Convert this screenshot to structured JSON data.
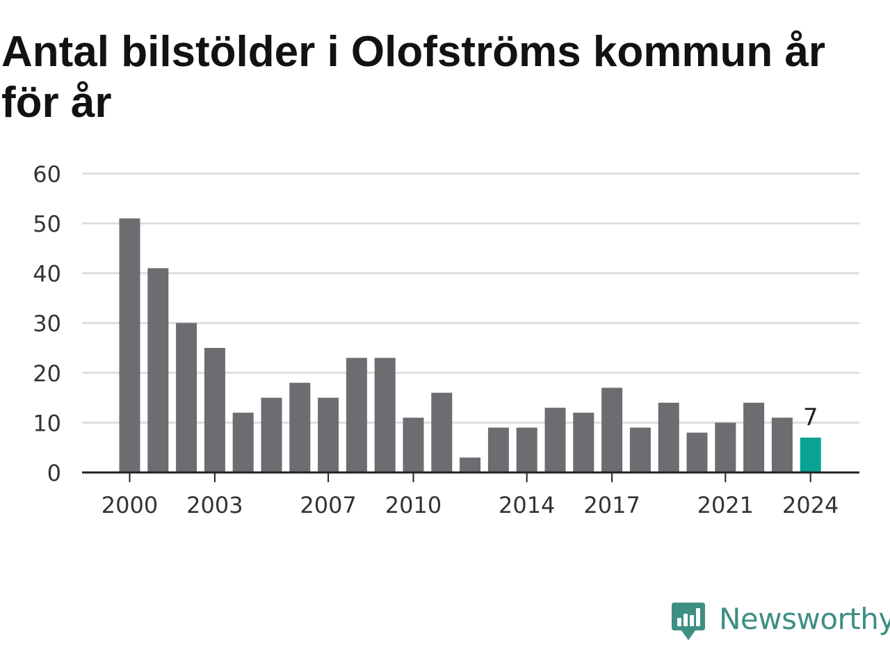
{
  "title": "Antal bilstölder i Olofströms kommun år för år",
  "brand": {
    "name": "Newsworthy",
    "logo_icon": "newsworthy-chart-bubble-icon",
    "color": "#3e8e83"
  },
  "colors": {
    "bar": "#6d6c71",
    "highlight": "#08a392",
    "grid": "#dddddd",
    "axis": "#222222"
  },
  "chart_data": {
    "type": "bar",
    "title": "Antal bilstölder i Olofströms kommun år för år",
    "xlabel": "",
    "ylabel": "",
    "categories": [
      "2000",
      "2001",
      "2002",
      "2003",
      "2004",
      "2005",
      "2006",
      "2007",
      "2008",
      "2009",
      "2010",
      "2011",
      "2012",
      "2013",
      "2014",
      "2015",
      "2016",
      "2017",
      "2018",
      "2019",
      "2020",
      "2021",
      "2022",
      "2023",
      "2024"
    ],
    "values": [
      51,
      41,
      30,
      25,
      12,
      15,
      18,
      15,
      23,
      23,
      11,
      16,
      3,
      9,
      9,
      13,
      12,
      17,
      9,
      14,
      8,
      10,
      14,
      11,
      7
    ],
    "x_tick_labels": [
      "2000",
      "2003",
      "2007",
      "2010",
      "2014",
      "2017",
      "2021",
      "2024"
    ],
    "y_ticks": [
      0,
      10,
      20,
      30,
      40,
      50,
      60
    ],
    "ylim": [
      0,
      60
    ],
    "grid": true,
    "highlight": {
      "category": "2024",
      "label": "7"
    }
  }
}
